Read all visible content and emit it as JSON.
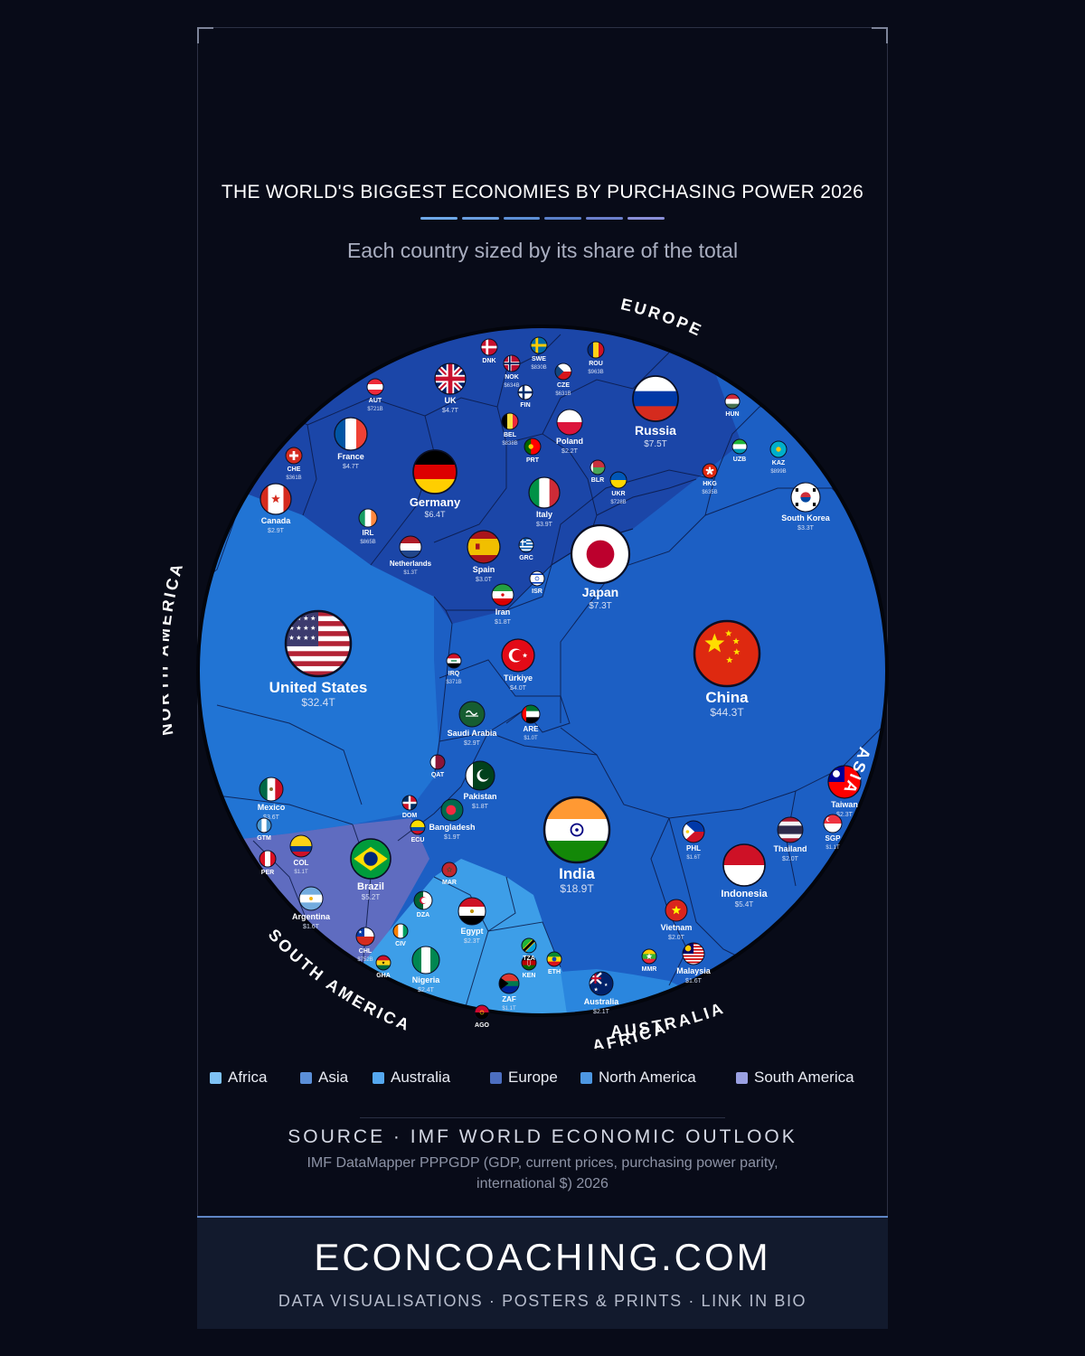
{
  "header": {
    "title": "THE WORLD'S BIGGEST ECONOMIES BY PURCHASING POWER 2026",
    "subtitle": "Each country sized by its share of the total",
    "rule_colors": [
      "#6ea8e8",
      "#6a9ee0",
      "#5d8fd6",
      "#5a7fc8",
      "#6b7fcc",
      "#8a8fd8"
    ]
  },
  "chart_data": {
    "type": "voronoi-treemap",
    "regions": [
      {
        "name": "EUROPE",
        "color": "#1b46a8"
      },
      {
        "name": "ASIA",
        "color": "#1c5fc4"
      },
      {
        "name": "NORTH AMERICA",
        "color": "#2174d4"
      },
      {
        "name": "SOUTH AMERICA",
        "color": "#5f6cc0"
      },
      {
        "name": "AFRICA",
        "color": "#3d9ee8"
      },
      {
        "name": "AUSTRALIA",
        "color": "#2a86de"
      }
    ],
    "countries": [
      {
        "label": "China",
        "value": "$44.3T",
        "region": "ASIA",
        "flag": "china"
      },
      {
        "label": "United States",
        "value": "$32.4T",
        "region": "NORTH AMERICA",
        "flag": "usa"
      },
      {
        "label": "India",
        "value": "$18.9T",
        "region": "ASIA",
        "flag": "india"
      },
      {
        "label": "Russia",
        "value": "$7.5T",
        "region": "EUROPE",
        "flag": "russia"
      },
      {
        "label": "Japan",
        "value": "$7.3T",
        "region": "ASIA",
        "flag": "japan"
      },
      {
        "label": "Germany",
        "value": "$6.4T",
        "region": "EUROPE",
        "flag": "germany"
      },
      {
        "label": "Indonesia",
        "value": "$5.4T",
        "region": "ASIA",
        "flag": "indonesia"
      },
      {
        "label": "Brazil",
        "value": "$5.2T",
        "region": "SOUTH AMERICA",
        "flag": "brazil"
      },
      {
        "label": "France",
        "value": "$4.7T",
        "region": "EUROPE",
        "flag": "france"
      },
      {
        "label": "UK",
        "value": "$4.7T",
        "region": "EUROPE",
        "flag": "uk"
      },
      {
        "label": "Türkiye",
        "value": "$4.0T",
        "region": "ASIA",
        "flag": "turkey"
      },
      {
        "label": "Italy",
        "value": "$3.9T",
        "region": "EUROPE",
        "flag": "italy"
      },
      {
        "label": "Mexico",
        "value": "$3.6T",
        "region": "NORTH AMERICA",
        "flag": "mexico"
      },
      {
        "label": "South Korea",
        "value": "$3.3T",
        "region": "ASIA",
        "flag": "southkorea"
      },
      {
        "label": "Spain",
        "value": "$3.0T",
        "region": "EUROPE",
        "flag": "spain"
      },
      {
        "label": "Saudi Arabia",
        "value": "$2.9T",
        "region": "ASIA",
        "flag": "saudi"
      },
      {
        "label": "Canada",
        "value": "$2.9T",
        "region": "NORTH AMERICA",
        "flag": "canada"
      },
      {
        "label": "Egypt",
        "value": "$2.3T",
        "region": "AFRICA",
        "flag": "egypt"
      },
      {
        "label": "Taiwan",
        "value": "$2.3T",
        "region": "ASIA",
        "flag": "taiwan"
      },
      {
        "label": "Poland",
        "value": "$2.2T",
        "region": "EUROPE",
        "flag": "poland"
      },
      {
        "label": "Nigeria",
        "value": "$2.4T",
        "region": "AFRICA",
        "flag": "nigeria"
      },
      {
        "label": "Australia",
        "value": "$2.1T",
        "region": "AUSTRALIA",
        "flag": "australia"
      },
      {
        "label": "Thailand",
        "value": "$2.0T",
        "region": "ASIA",
        "flag": "thailand"
      },
      {
        "label": "Vietnam",
        "value": "$2.0T",
        "region": "ASIA",
        "flag": "vietnam"
      },
      {
        "label": "Pakistan",
        "value": "$1.8T",
        "region": "ASIA",
        "flag": "pakistan"
      },
      {
        "label": "Iran",
        "value": "$1.8T",
        "region": "ASIA",
        "flag": "iran"
      },
      {
        "label": "Bangladesh",
        "value": "$1.9T",
        "region": "ASIA",
        "flag": "bangladesh"
      },
      {
        "label": "Malaysia",
        "value": "$1.6T",
        "region": "ASIA",
        "flag": "malaysia"
      },
      {
        "label": "Argentina",
        "value": "$1.6T",
        "region": "SOUTH AMERICA",
        "flag": "argentina"
      },
      {
        "label": "PHL",
        "value": "$1.6T",
        "region": "ASIA",
        "flag": "philippines"
      },
      {
        "label": "Netherlands",
        "value": "$1.3T",
        "region": "EUROPE",
        "flag": "netherlands"
      },
      {
        "label": "COL",
        "value": "$1.1T",
        "region": "SOUTH AMERICA",
        "flag": "colombia"
      },
      {
        "label": "SGP",
        "value": "$1.1T",
        "region": "ASIA",
        "flag": "singapore"
      },
      {
        "label": "ZAF",
        "value": "$1.1T",
        "region": "AFRICA",
        "flag": "southafrica"
      },
      {
        "label": "ARE",
        "value": "$1.0T",
        "region": "ASIA",
        "flag": "uae"
      },
      {
        "label": "IRL",
        "value": "$865B",
        "region": "EUROPE",
        "flag": "ireland"
      },
      {
        "label": "SWE",
        "value": "$830B",
        "region": "EUROPE",
        "flag": "sweden"
      },
      {
        "label": "BEL",
        "value": "$838B",
        "region": "EUROPE",
        "flag": "belgium"
      },
      {
        "label": "UKR",
        "value": "$728B",
        "region": "EUROPE",
        "flag": "ukraine"
      },
      {
        "label": "AUT",
        "value": "$721B",
        "region": "EUROPE",
        "flag": "austria"
      },
      {
        "label": "CHL",
        "value": "$752B",
        "region": "SOUTH AMERICA",
        "flag": "chile"
      },
      {
        "label": "CZE",
        "value": "$631B",
        "region": "EUROPE",
        "flag": "czech"
      },
      {
        "label": "NOK",
        "value": "$634B",
        "region": "EUROPE",
        "flag": "norway"
      },
      {
        "label": "KAZ",
        "value": "$899B",
        "region": "ASIA",
        "flag": "kazakhstan"
      },
      {
        "label": "ROU",
        "value": "$963B",
        "region": "EUROPE",
        "flag": "romania"
      },
      {
        "label": "CHE",
        "value": "$361B",
        "region": "EUROPE",
        "flag": "switzerland"
      },
      {
        "label": "IRQ",
        "value": "$371B",
        "region": "ASIA",
        "flag": "iraq"
      },
      {
        "label": "HKG",
        "value": "$635B",
        "region": "ASIA",
        "flag": "hongkong"
      },
      {
        "label": "PER",
        "value": "",
        "region": "SOUTH AMERICA",
        "flag": "peru"
      },
      {
        "label": "DZA",
        "value": "",
        "region": "AFRICA",
        "flag": "algeria"
      },
      {
        "label": "DNK",
        "value": "",
        "region": "EUROPE",
        "flag": "denmark"
      },
      {
        "label": "FIN",
        "value": "",
        "region": "EUROPE",
        "flag": "finland"
      },
      {
        "label": "HUN",
        "value": "",
        "region": "EUROPE",
        "flag": "hungary"
      },
      {
        "label": "UZB",
        "value": "",
        "region": "ASIA",
        "flag": "uzbekistan"
      },
      {
        "label": "PRT",
        "value": "",
        "region": "EUROPE",
        "flag": "portugal"
      },
      {
        "label": "GRC",
        "value": "",
        "region": "EUROPE",
        "flag": "greece"
      },
      {
        "label": "ISR",
        "value": "",
        "region": "ASIA",
        "flag": "israel"
      },
      {
        "label": "BLR",
        "value": "",
        "region": "EUROPE",
        "flag": "belarus"
      },
      {
        "label": "QAT",
        "value": "",
        "region": "ASIA",
        "flag": "qatar"
      },
      {
        "label": "DOM",
        "value": "",
        "region": "NORTH AMERICA",
        "flag": "dominican"
      },
      {
        "label": "GTM",
        "value": "",
        "region": "NORTH AMERICA",
        "flag": "guatemala"
      },
      {
        "label": "ECU",
        "value": "",
        "region": "SOUTH AMERICA",
        "flag": "ecuador"
      },
      {
        "label": "MAR",
        "value": "",
        "region": "AFRICA",
        "flag": "morocco"
      },
      {
        "label": "CIV",
        "value": "",
        "region": "AFRICA",
        "flag": "ivorycoast"
      },
      {
        "label": "GHA",
        "value": "",
        "region": "AFRICA",
        "flag": "ghana"
      },
      {
        "label": "KEN",
        "value": "",
        "region": "AFRICA",
        "flag": "kenya"
      },
      {
        "label": "ETH",
        "value": "",
        "region": "AFRICA",
        "flag": "ethiopia"
      },
      {
        "label": "TZA",
        "value": "",
        "region": "AFRICA",
        "flag": "tanzania"
      },
      {
        "label": "AGO",
        "value": "",
        "region": "AFRICA",
        "flag": "angola"
      },
      {
        "label": "MMR",
        "value": "",
        "region": "ASIA",
        "flag": "myanmar"
      }
    ]
  },
  "legend": [
    {
      "label": "Africa",
      "color": "#7ec2f5"
    },
    {
      "label": "Asia",
      "color": "#5b8fd8"
    },
    {
      "label": "Australia",
      "color": "#55a8f0"
    },
    {
      "label": "Europe",
      "color": "#4c6ec0"
    },
    {
      "label": "North America",
      "color": "#4d97e2"
    },
    {
      "label": "South America",
      "color": "#9aa0e2"
    }
  ],
  "source": {
    "title": "SOURCE · IMF WORLD ECONOMIC OUTLOOK",
    "text": "IMF DataMapper PPPGDP (GDP, current prices, purchasing power parity, international $) 2026"
  },
  "footer": {
    "brand": "ECONCOACHING.COM",
    "tagline": "DATA VISUALISATIONS · POSTERS & PRINTS · LINK IN BIO"
  }
}
